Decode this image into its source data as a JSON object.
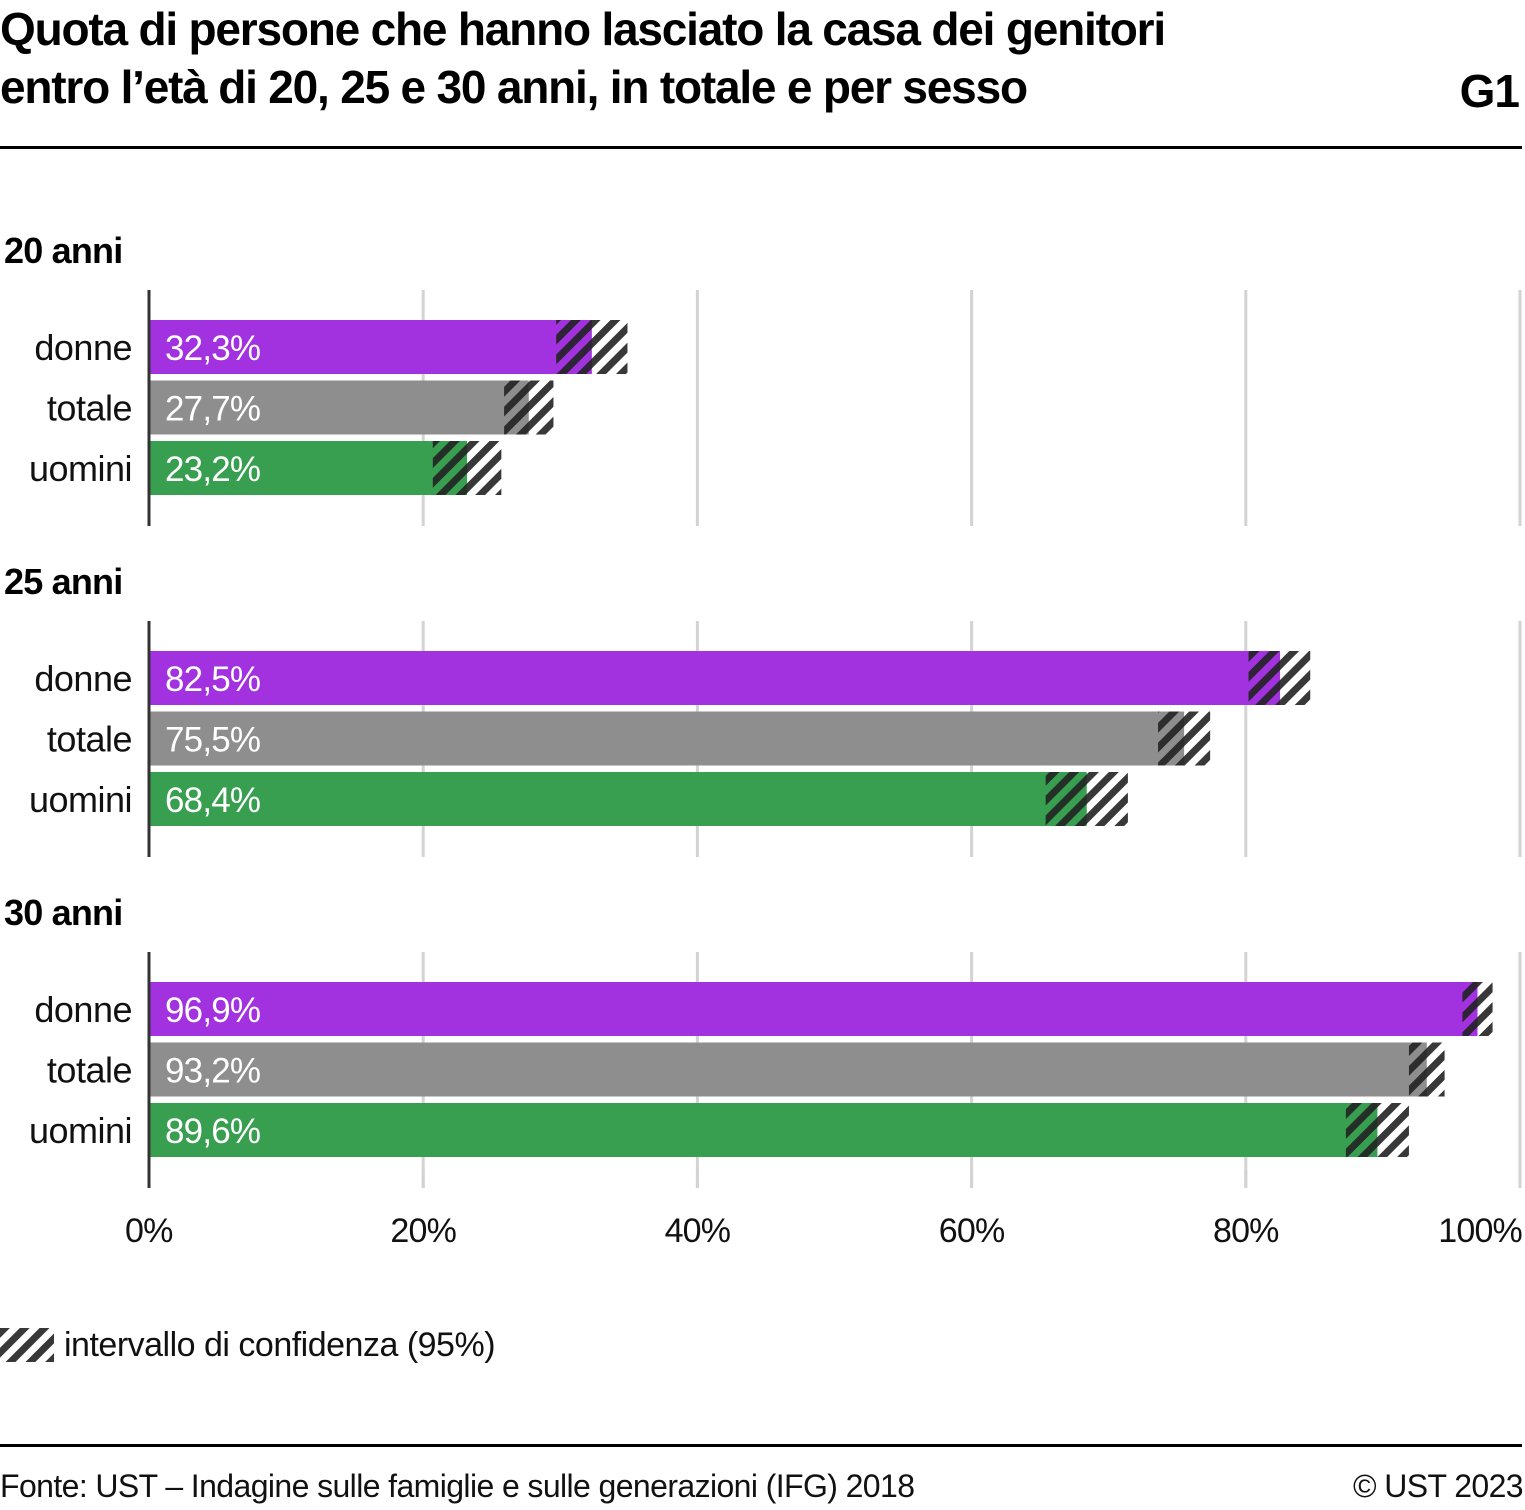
{
  "header": {
    "title_line1": "Quota di persone che hanno lasciato la casa dei genitori",
    "title_line2": "entro l’età di 20, 25 e 30 anni, in totale e per sesso",
    "code": "G1"
  },
  "colors": {
    "donne": "#a231e0",
    "totale": "#8e8e8e",
    "uomini": "#389f50",
    "hatch": "#222222",
    "grid": "#d3d3d3",
    "axis": "#333333"
  },
  "legend": {
    "label": "intervallo di confidenza (95%)",
    "icon": "hatch-pattern-icon"
  },
  "footer": {
    "source": "Fonte: UST – Indagine sulle famiglie e sulle generazioni (IFG) 2018",
    "copyright": "© UST 2023"
  },
  "chart_data": {
    "type": "bar",
    "orientation": "horizontal",
    "title": "Quota di persone che hanno lasciato la casa dei genitori entro l’età di 20, 25 e 30 anni, in totale e per sesso",
    "xlabel": "",
    "ylabel": "",
    "xlim": [
      0,
      100
    ],
    "x_ticks": [
      0,
      20,
      40,
      60,
      80,
      100
    ],
    "x_tick_labels": [
      "0%",
      "20%",
      "40%",
      "60%",
      "80%",
      "100%"
    ],
    "grid": true,
    "legend_position": "bottom-left",
    "categories": [
      "donne",
      "totale",
      "uomini"
    ],
    "groups": [
      {
        "label": "20 anni",
        "bars": [
          {
            "category": "donne",
            "value": 32.3,
            "label": "32,3%",
            "ci": [
              29.7,
              34.9
            ]
          },
          {
            "category": "totale",
            "value": 27.7,
            "label": "27,7%",
            "ci": [
              25.9,
              29.5
            ]
          },
          {
            "category": "uomini",
            "value": 23.2,
            "label": "23,2%",
            "ci": [
              20.7,
              25.7
            ]
          }
        ]
      },
      {
        "label": "25 anni",
        "bars": [
          {
            "category": "donne",
            "value": 82.5,
            "label": "82,5%",
            "ci": [
              80.2,
              84.7
            ]
          },
          {
            "category": "totale",
            "value": 75.5,
            "label": "75,5%",
            "ci": [
              73.6,
              77.4
            ]
          },
          {
            "category": "uomini",
            "value": 68.4,
            "label": "68,4%",
            "ci": [
              65.4,
              71.4
            ]
          }
        ]
      },
      {
        "label": "30 anni",
        "bars": [
          {
            "category": "donne",
            "value": 96.9,
            "label": "96,9%",
            "ci": [
              95.8,
              98.0
            ]
          },
          {
            "category": "totale",
            "value": 93.2,
            "label": "93,2%",
            "ci": [
              91.9,
              94.5
            ]
          },
          {
            "category": "uomini",
            "value": 89.6,
            "label": "89,6%",
            "ci": [
              87.3,
              91.9
            ]
          }
        ]
      }
    ]
  }
}
